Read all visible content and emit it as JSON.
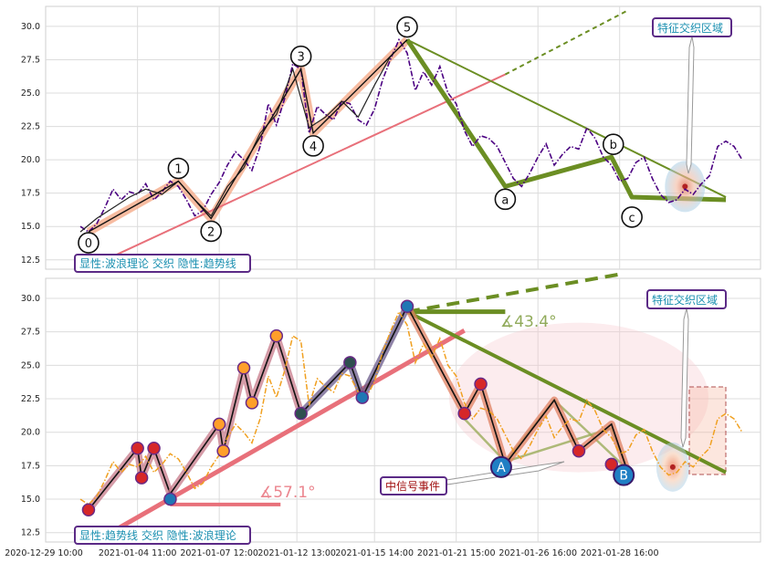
{
  "chart_data": [
    {
      "type": "line",
      "panel": "top",
      "ylim": [
        11.8,
        31.5
      ],
      "yticks": [
        "12.5",
        "15.0",
        "17.5",
        "20.0",
        "22.5",
        "25.0",
        "27.5",
        "30.0"
      ],
      "ytick_values": [
        12.5,
        15.0,
        17.5,
        20.0,
        22.5,
        25.0,
        27.5,
        30.0
      ],
      "xlim": [
        0,
        82
      ],
      "grid": true,
      "series": [
        {
          "style": "dashdot-purple",
          "x": [
            0,
            1,
            2,
            3,
            4,
            5,
            6,
            7,
            8,
            9,
            10,
            11,
            12,
            13,
            14,
            15,
            16,
            17,
            18,
            19,
            20,
            21,
            22,
            23,
            24,
            25,
            26,
            27,
            28,
            29,
            30,
            31,
            32,
            33,
            34,
            35,
            36,
            37,
            38,
            39,
            40,
            41,
            42,
            43,
            44,
            45,
            46,
            47,
            48,
            49,
            50,
            51,
            52,
            53,
            54,
            55,
            56,
            57,
            58,
            59,
            60,
            61,
            62,
            63,
            64,
            65,
            66,
            67,
            68,
            69,
            70,
            71,
            72,
            73,
            74,
            75,
            76,
            77,
            78,
            79,
            80,
            81
          ],
          "y": [
            15.0,
            14.6,
            15.2,
            16.4,
            17.8,
            17.0,
            17.6,
            17.4,
            18.2,
            17.0,
            17.6,
            18.4,
            18.0,
            17.0,
            15.8,
            16.2,
            17.4,
            18.3,
            19.6,
            20.6,
            20.0,
            19.2,
            21.0,
            24.2,
            22.6,
            24.6,
            27.2,
            26.8,
            22.0,
            24.0,
            23.4,
            23.0,
            24.4,
            24.2,
            23.0,
            22.6,
            23.8,
            26.0,
            27.6,
            29.0,
            28.0,
            25.2,
            26.6,
            25.6,
            27.0,
            25.0,
            24.2,
            22.2,
            21.0,
            21.8,
            21.6,
            21.0,
            19.8,
            18.6,
            18.0,
            19.0,
            20.2,
            21.2,
            19.6,
            20.4,
            21.0,
            20.8,
            22.4,
            21.6,
            20.2,
            19.6,
            18.4,
            18.6,
            19.8,
            20.2,
            18.6,
            17.4,
            16.8,
            17.0,
            17.8,
            17.4,
            18.2,
            18.8,
            21.0,
            21.4,
            21.0,
            20.0
          ]
        },
        {
          "style": "thin-black",
          "x": [
            0,
            2,
            4,
            6,
            8,
            10,
            12,
            14,
            16,
            18,
            20,
            22,
            24,
            26,
            28,
            30,
            32,
            34,
            36,
            38,
            40
          ],
          "y": [
            14.6,
            15.6,
            16.4,
            17.2,
            17.8,
            17.4,
            18.4,
            17.0,
            15.8,
            18.0,
            19.4,
            22.0,
            23.4,
            26.8,
            22.4,
            23.2,
            24.4,
            23.2,
            25.6,
            27.8,
            29.0
          ]
        }
      ],
      "wave_points": [
        {
          "label": "0",
          "x": 1.0,
          "y": 14.6
        },
        {
          "label": "1",
          "x": 12.0,
          "y": 18.4
        },
        {
          "label": "2",
          "x": 16.0,
          "y": 15.6
        },
        {
          "label": "3",
          "x": 27.0,
          "y": 26.8
        },
        {
          "label": "4",
          "x": 28.5,
          "y": 22.0
        },
        {
          "label": "5",
          "x": 40.0,
          "y": 29.0
        },
        {
          "label": "a",
          "x": 52.0,
          "y": 18.0
        },
        {
          "label": "b",
          "x": 65.0,
          "y": 20.2
        },
        {
          "label": "c",
          "x": 67.5,
          "y": 16.8
        }
      ],
      "annotations": [
        {
          "key": "legend",
          "text": "显性:波浪理论 交织 隐性:趋势线"
        },
        {
          "key": "zone",
          "text": "特征交织区域"
        }
      ]
    },
    {
      "type": "line",
      "panel": "bottom",
      "ylim": [
        11.8,
        31.5
      ],
      "yticks": [
        "12.5",
        "15.0",
        "17.5",
        "20.0",
        "22.5",
        "25.0",
        "27.5",
        "30.0"
      ],
      "ytick_values": [
        12.5,
        15.0,
        17.5,
        20.0,
        22.5,
        25.0,
        27.5,
        30.0
      ],
      "xlim": [
        0,
        82
      ],
      "grid": true,
      "xticks": [
        "2020-12-29 10:00",
        "2021-01-04 11:00",
        "2021-01-07 12:00",
        "2021-01-12 13:00",
        "2021-01-15 14:00",
        "2021-01-21 15:00",
        "2021-01-26 16:00",
        "2021-01-28 16:00"
      ],
      "xtick_values": [
        -7,
        7,
        17,
        26.5,
        36,
        46,
        56,
        66
      ],
      "series": [
        {
          "style": "dashdot-orange",
          "x": [
            0,
            1,
            2,
            3,
            4,
            5,
            6,
            7,
            8,
            9,
            10,
            11,
            12,
            13,
            14,
            15,
            16,
            17,
            18,
            19,
            20,
            21,
            22,
            23,
            24,
            25,
            26,
            27,
            28,
            29,
            30,
            31,
            32,
            33,
            34,
            35,
            36,
            37,
            38,
            39,
            40,
            41,
            42,
            43,
            44,
            45,
            46,
            47,
            48,
            49,
            50,
            51,
            52,
            53,
            54,
            55,
            56,
            57,
            58,
            59,
            60,
            61,
            62,
            63,
            64,
            65,
            66,
            67,
            68,
            69,
            70,
            71,
            72,
            73,
            74,
            75,
            76,
            77,
            78,
            79,
            80,
            81
          ],
          "y": [
            15.0,
            14.6,
            15.2,
            16.4,
            17.8,
            17.0,
            17.6,
            17.4,
            18.2,
            17.0,
            17.6,
            18.4,
            18.0,
            17.0,
            15.8,
            16.2,
            17.4,
            18.3,
            19.6,
            20.6,
            20.0,
            19.2,
            21.0,
            24.2,
            22.6,
            24.6,
            27.2,
            26.8,
            22.0,
            24.0,
            23.4,
            23.0,
            24.4,
            24.2,
            23.0,
            22.6,
            23.8,
            26.0,
            27.6,
            29.0,
            28.0,
            25.2,
            26.6,
            25.6,
            27.0,
            25.0,
            24.2,
            22.2,
            21.0,
            21.8,
            21.6,
            21.0,
            19.8,
            18.6,
            18.0,
            19.0,
            20.2,
            21.2,
            19.6,
            20.4,
            21.0,
            20.8,
            22.4,
            21.6,
            20.2,
            19.6,
            18.4,
            18.6,
            19.8,
            20.2,
            18.6,
            17.4,
            16.8,
            17.0,
            17.8,
            17.4,
            18.2,
            18.8,
            21.0,
            21.4,
            21.0,
            20.0
          ]
        }
      ],
      "markers": [
        {
          "x": 1.0,
          "y": 14.2,
          "color": "#d62728"
        },
        {
          "x": 7.0,
          "y": 18.8,
          "color": "#d62728"
        },
        {
          "x": 7.5,
          "y": 16.6,
          "color": "#d62728"
        },
        {
          "x": 9.0,
          "y": 18.8,
          "color": "#d62728"
        },
        {
          "x": 11.0,
          "y": 15.0,
          "color": "#1f77b4"
        },
        {
          "x": 17.0,
          "y": 20.6,
          "color": "#ff9f2a"
        },
        {
          "x": 17.5,
          "y": 18.6,
          "color": "#ff9f2a"
        },
        {
          "x": 20.0,
          "y": 24.8,
          "color": "#ff9f2a"
        },
        {
          "x": 21.0,
          "y": 22.2,
          "color": "#ff9f2a"
        },
        {
          "x": 24.0,
          "y": 27.2,
          "color": "#ff9f2a"
        },
        {
          "x": 27.0,
          "y": 21.4,
          "color": "#2f4f4f"
        },
        {
          "x": 33.0,
          "y": 25.2,
          "color": "#2f4f4f"
        },
        {
          "x": 34.5,
          "y": 22.6,
          "color": "#1f77b4"
        },
        {
          "x": 40.0,
          "y": 29.4,
          "color": "#1f77b4"
        },
        {
          "x": 47.0,
          "y": 21.4,
          "color": "#d62728"
        },
        {
          "x": 49.0,
          "y": 23.6,
          "color": "#d62728"
        },
        {
          "x": 61.0,
          "y": 18.6,
          "color": "#d62728"
        },
        {
          "x": 65.0,
          "y": 17.6,
          "color": "#d62728"
        }
      ],
      "signal_points": [
        {
          "label": "A",
          "x": 51.5,
          "y": 17.4
        },
        {
          "label": "B",
          "x": 66.5,
          "y": 16.8
        }
      ],
      "angles": [
        {
          "text": "∡43.4°"
        },
        {
          "text": "∡57.1°"
        }
      ],
      "annotations": [
        {
          "key": "legend",
          "text": "显性:趋势线 交织 隐性:波浪理论"
        },
        {
          "key": "zone",
          "text": "特征交织区域"
        },
        {
          "key": "signal",
          "text": "中信号事件"
        }
      ]
    }
  ],
  "colors": {
    "purple": "#4b0082",
    "orange": "#f0a020",
    "salmon": "#f4a582",
    "olive": "#6b8e23",
    "red_line": "#e8707a",
    "box_border": "#5b2a86",
    "box_text": "#1a8fb0",
    "signal_text": "#a01010"
  }
}
